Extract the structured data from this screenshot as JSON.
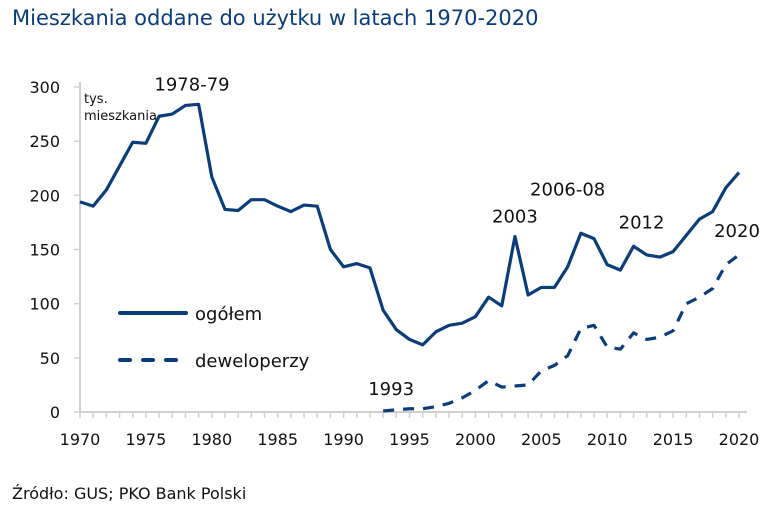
{
  "title": "Mieszkania oddane do użytku w latach 1970-2020",
  "source": "Źródło: GUS; PKO Bank Polski",
  "chart_data": {
    "type": "line",
    "title": "Mieszkania oddane do użytku w latach 1970-2020",
    "ylabel": "tys. mieszkania",
    "xlim": [
      1970,
      2020
    ],
    "ylim": [
      0,
      300
    ],
    "x_ticks": [
      1970,
      1975,
      1980,
      1985,
      1990,
      1995,
      2000,
      2005,
      2010,
      2015,
      2020
    ],
    "y_ticks": [
      0,
      50,
      100,
      150,
      200,
      250,
      300
    ],
    "grid": false,
    "legend": "left-center",
    "color": "#0b3d7a",
    "series": [
      {
        "name": "ogółem",
        "style": "solid",
        "x_start": 1970,
        "values": [
          194,
          190,
          205,
          227,
          249,
          248,
          273,
          275,
          283,
          284,
          217,
          187,
          186,
          196,
          196,
          190,
          185,
          191,
          190,
          150,
          134,
          137,
          133,
          94,
          76,
          67,
          62,
          74,
          80,
          82,
          88,
          106,
          98,
          162,
          108,
          115,
          115,
          134,
          165,
          160,
          136,
          131,
          153,
          145,
          143,
          148,
          163,
          178,
          185,
          207,
          221
        ]
      },
      {
        "name": "deweloperzy",
        "style": "dashed",
        "x_start": 1993,
        "values": [
          1,
          2,
          3,
          3,
          5,
          8,
          13,
          20,
          29,
          23,
          24,
          25,
          38,
          43,
          52,
          77,
          80,
          60,
          58,
          73,
          67,
          69,
          75,
          100,
          106,
          114,
          136,
          145
        ]
      }
    ],
    "annotations": [
      {
        "text": "1978-79",
        "x": 1978.5,
        "y": 284
      },
      {
        "text": "2003",
        "x": 2003,
        "y": 162
      },
      {
        "text": "2006-08",
        "x": 2007,
        "y": 165
      },
      {
        "text": "2012",
        "x": 2012,
        "y": 153
      },
      {
        "text": "2020",
        "x": 2020,
        "y": 145
      },
      {
        "text": "1993",
        "x": 1993,
        "y": 1
      }
    ]
  }
}
